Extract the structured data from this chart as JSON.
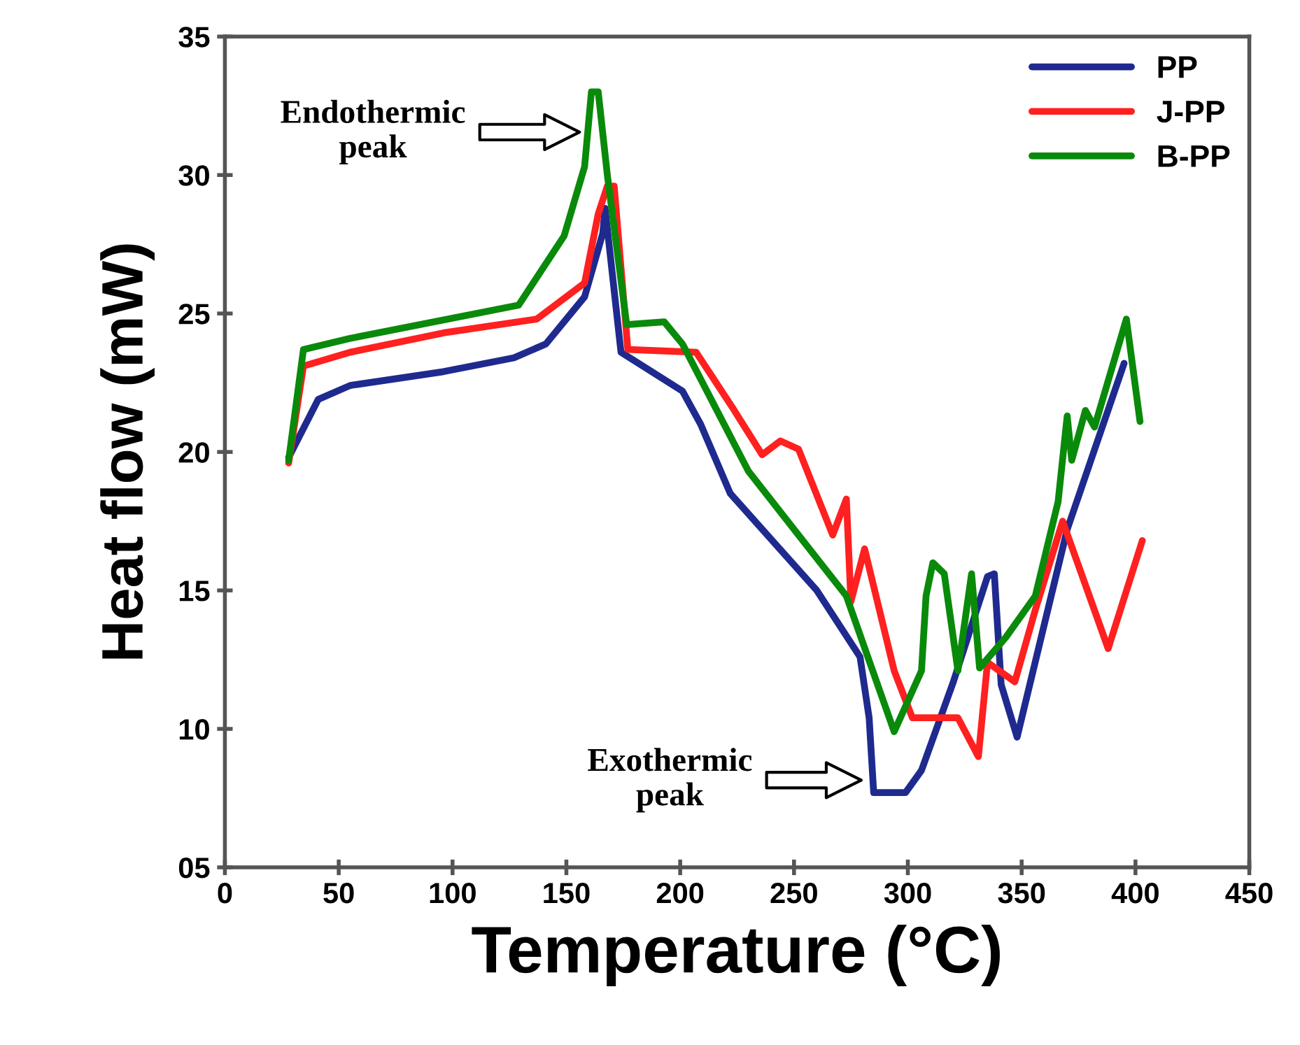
{
  "chart_data": {
    "type": "line",
    "xlabel": "Temperature (°C)",
    "ylabel": "Heat flow (mW)",
    "xlim": [
      0,
      450
    ],
    "xticks": [
      0,
      50,
      100,
      150,
      200,
      250,
      300,
      350,
      400,
      450
    ],
    "ylim": [
      5,
      35
    ],
    "yticks": [
      {
        "value": 5,
        "label": "05"
      },
      10,
      15,
      20,
      25,
      30,
      35
    ],
    "grid": false,
    "legend": "top right",
    "marker": "none",
    "line_style": "solid",
    "annotations": [
      "Endothermic\npeak",
      "Exothermic\npeak"
    ],
    "series": [
      {
        "name": "PP",
        "color": "#1f2a8f",
        "x": [
          28,
          41,
          55,
          96,
          127,
          141,
          158,
          166,
          167,
          174,
          201,
          209,
          222,
          260,
          279,
          283,
          285,
          299,
          306,
          320,
          335,
          338,
          341,
          348,
          370,
          395
        ],
        "values": [
          19.8,
          21.9,
          22.4,
          22.9,
          23.4,
          23.9,
          25.6,
          27.9,
          28.8,
          23.6,
          22.2,
          21.0,
          18.5,
          15.0,
          12.6,
          10.4,
          7.7,
          7.7,
          8.5,
          11.7,
          15.5,
          15.6,
          11.6,
          9.7,
          17.2,
          23.2
        ]
      },
      {
        "name": "J-PP",
        "color": "#ff2020",
        "x": [
          28,
          34.5,
          55,
          96,
          137,
          158,
          164,
          168,
          171,
          177,
          207,
          223,
          236,
          244,
          252,
          267,
          273,
          275,
          281,
          294,
          302,
          322,
          331,
          335,
          347,
          356,
          368,
          388,
          403
        ],
        "values": [
          19.6,
          23.1,
          23.6,
          24.3,
          24.8,
          26.1,
          28.6,
          29.6,
          29.6,
          23.7,
          23.6,
          21.6,
          19.9,
          20.4,
          20.1,
          17.0,
          18.3,
          14.6,
          16.5,
          12.1,
          10.4,
          10.4,
          9.0,
          12.4,
          11.7,
          14.3,
          17.5,
          12.9,
          16.8
        ]
      },
      {
        "name": "B-PP",
        "color": "#0a8a0a",
        "x": [
          28,
          34.5,
          55,
          129,
          149,
          158,
          161,
          164,
          168,
          176.5,
          193,
          201,
          230,
          273,
          294,
          306,
          308,
          311,
          316,
          322,
          328,
          331.5,
          343,
          356,
          366,
          370,
          372,
          378,
          382,
          396,
          402
        ],
        "values": [
          19.7,
          23.7,
          24.1,
          25.3,
          27.8,
          30.3,
          33.0,
          33.0,
          30.0,
          24.6,
          24.7,
          23.9,
          19.3,
          14.8,
          9.9,
          12.1,
          14.8,
          16.0,
          15.6,
          12.1,
          15.6,
          12.2,
          13.3,
          14.8,
          18.2,
          21.3,
          19.7,
          21.5,
          20.9,
          24.8,
          21.1
        ]
      }
    ]
  }
}
